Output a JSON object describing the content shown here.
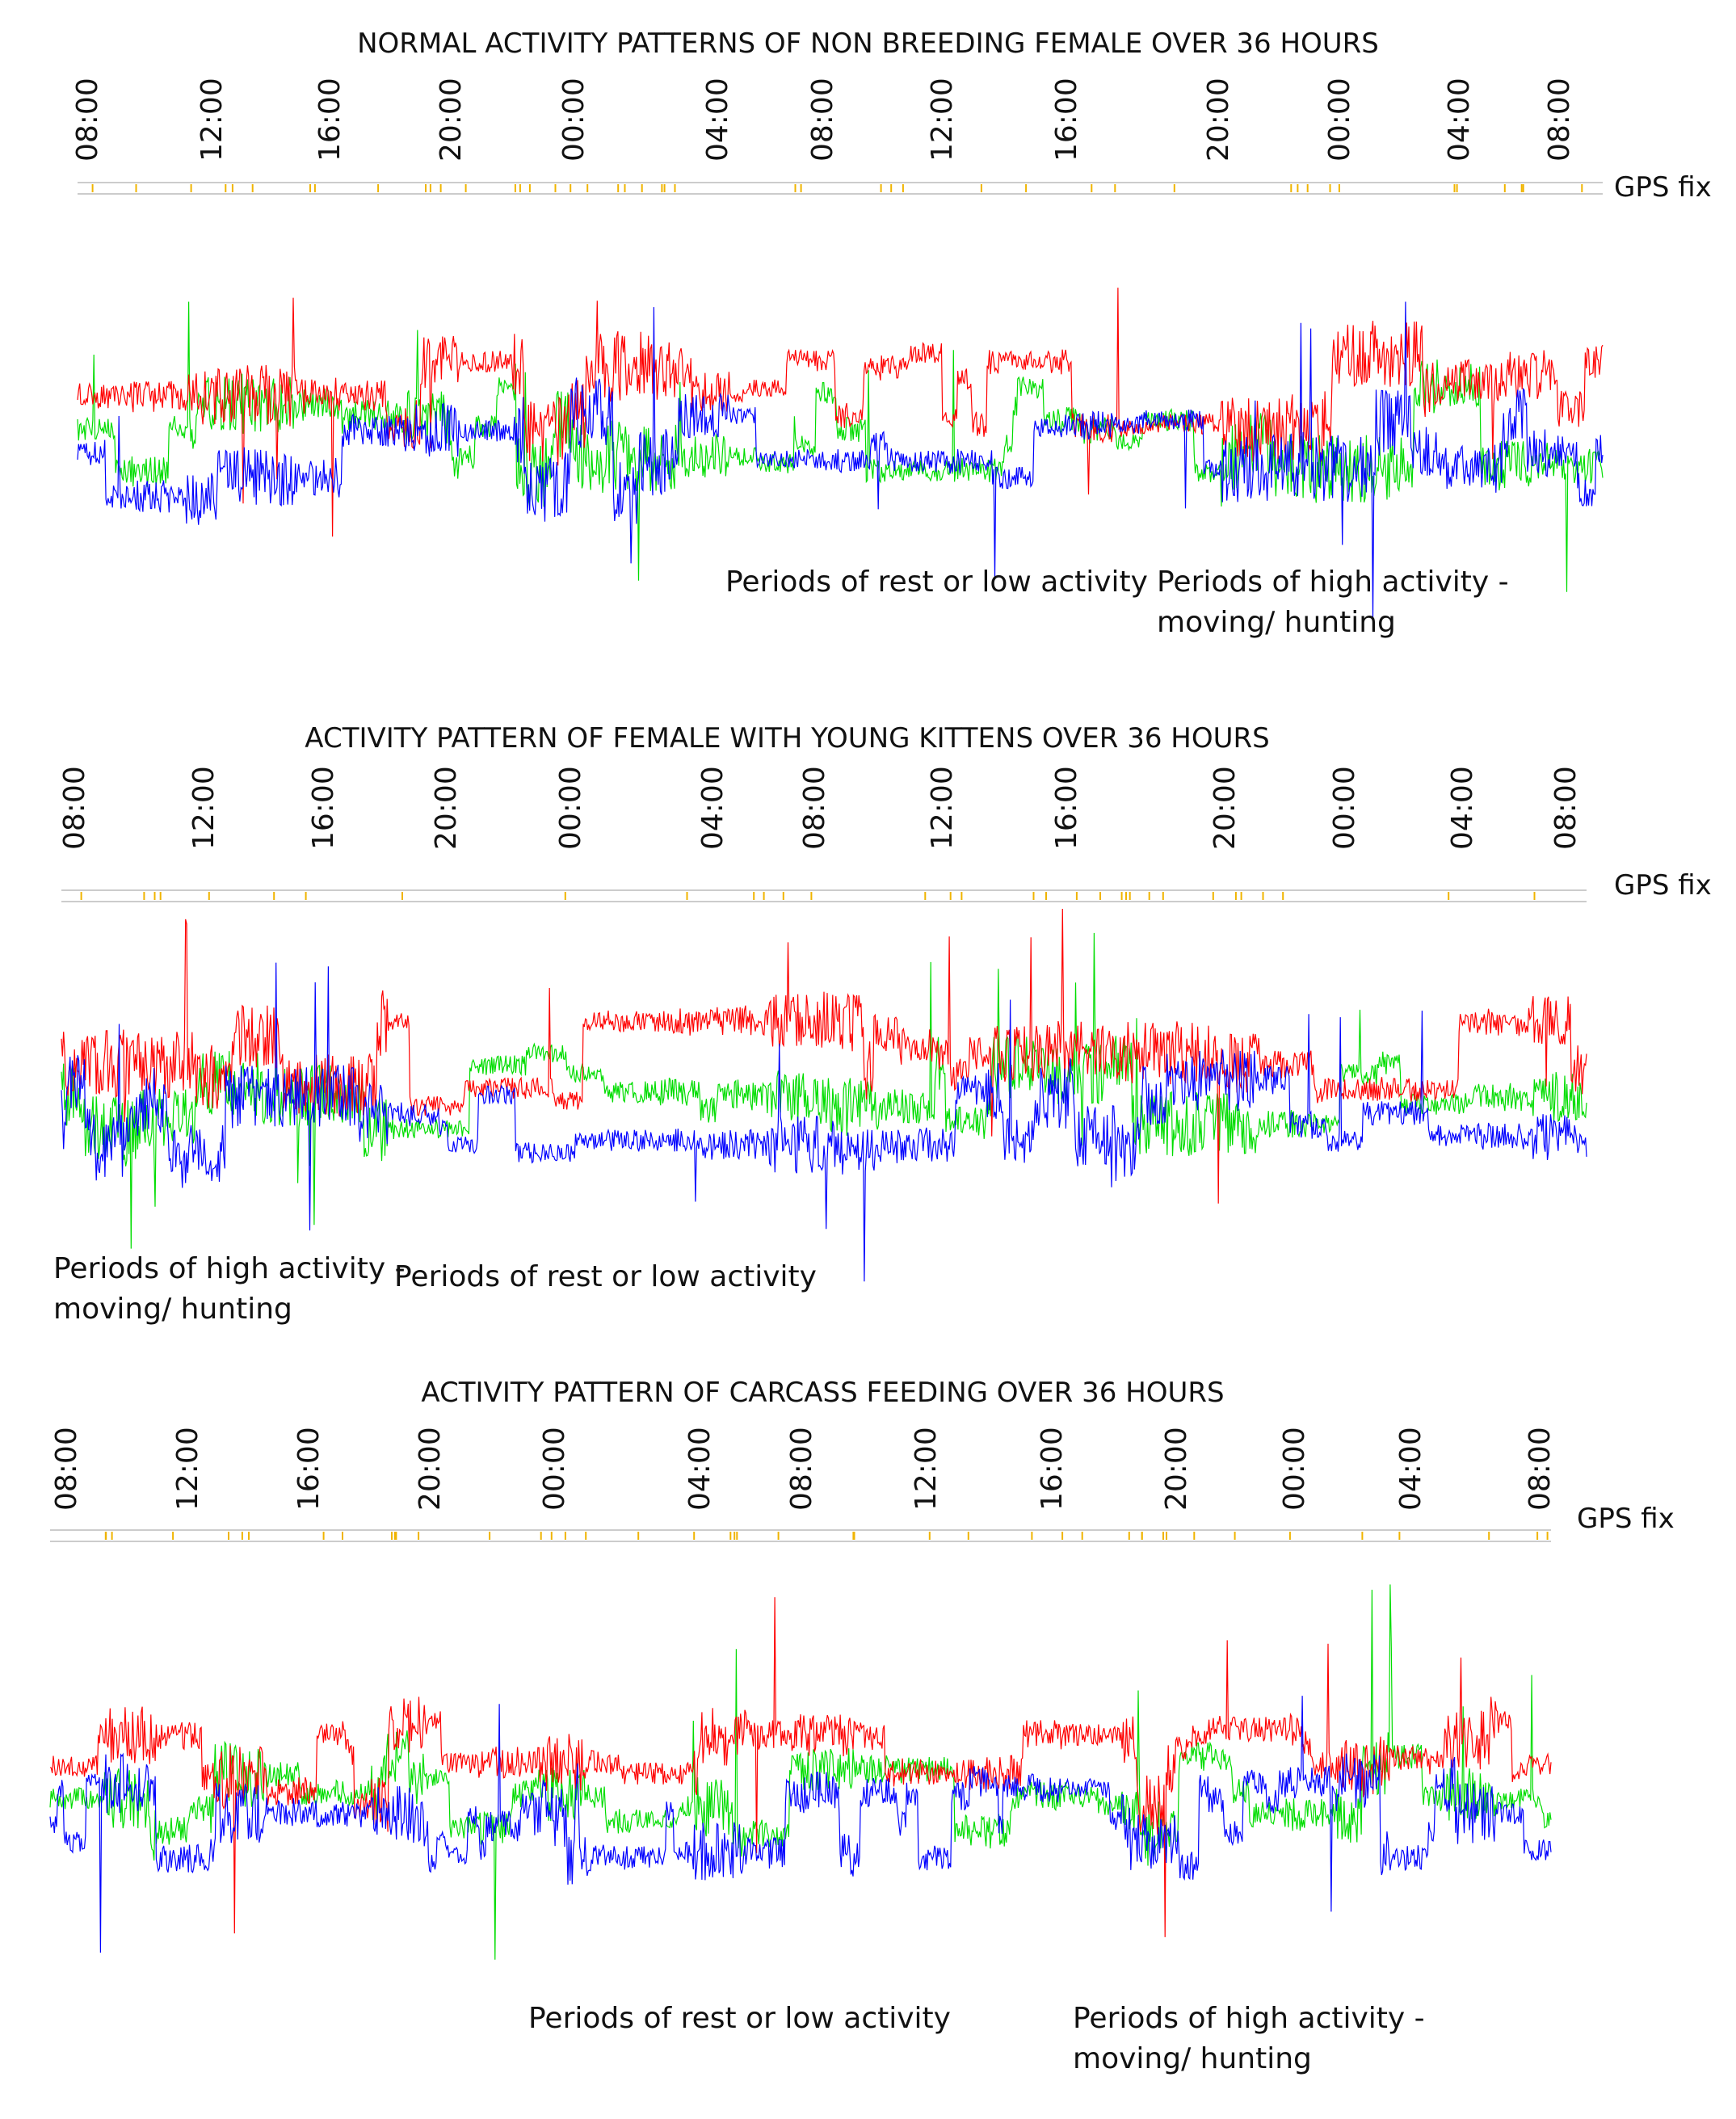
{
  "chart_data": [
    {
      "type": "line",
      "title": "NORMAL ACTIVITY PATTERNS OF NON BREEDING FEMALE OVER 36 HOURS",
      "x_tick_labels": [
        "08:00",
        "12:00",
        "16:00",
        "20:00",
        "00:00",
        "04:00",
        "08:00",
        "12:00",
        "16:00",
        "20:00",
        "00:00",
        "04:00",
        "08:00"
      ],
      "gps_label": "GPS fix",
      "series_colors": [
        "#ff0000",
        "#00dd00",
        "#0000ff"
      ],
      "annotations": [
        "Periods of rest or low activity",
        "Periods of high activity -\nmoving/ hunting"
      ],
      "activity_profile": [
        0.35,
        0.45,
        0.8,
        0.85,
        0.5,
        0.45,
        0.75,
        0.3,
        0.95,
        1.0,
        0.95,
        0.6,
        0.25,
        0.3,
        0.35,
        0.3,
        0.35,
        0.3,
        0.4,
        0.25,
        0.3,
        0.95,
        1.0,
        0.95,
        0.9,
        0.6,
        0.7,
        0.5
      ],
      "seed": 11
    },
    {
      "type": "line",
      "title": "ACTIVITY PATTERN OF FEMALE WITH YOUNG KITTENS OVER 36 HOURS",
      "x_tick_labels": [
        "08:00",
        "12:00",
        "16:00",
        "20:00",
        "00:00",
        "04:00",
        "08:00",
        "12:00",
        "16:00",
        "20:00",
        "00:00",
        "04:00",
        "08:00"
      ],
      "gps_label": "GPS fix",
      "series_colors": [
        "#ff0000",
        "#00dd00",
        "#0000ff"
      ],
      "annotations": [
        "Periods of high activity -\nmoving/ hunting",
        "Periods of rest or low activity"
      ],
      "activity_profile": [
        0.9,
        0.95,
        0.9,
        0.9,
        0.85,
        0.9,
        0.3,
        0.25,
        0.3,
        0.25,
        0.3,
        0.4,
        0.45,
        0.8,
        0.85,
        0.5,
        0.45,
        0.85,
        0.9,
        0.85,
        0.9,
        0.85,
        0.4,
        0.3,
        0.35,
        0.3,
        0.4,
        0.7
      ],
      "seed": 23
    },
    {
      "type": "line",
      "title": "ACTIVITY PATTERN OF CARCASS FEEDING OVER 36 HOURS",
      "x_tick_labels": [
        "08:00",
        "12:00",
        "16:00",
        "20:00",
        "00:00",
        "04:00",
        "08:00",
        "12:00",
        "16:00",
        "20:00",
        "00:00",
        "04:00",
        "08:00"
      ],
      "gps_label": "GPS fix",
      "series_colors": [
        "#ff0000",
        "#00dd00",
        "#0000ff"
      ],
      "annotations": [
        "Periods of rest or low activity",
        "Periods of high activity -\nmoving/ hunting"
      ],
      "activity_profile": [
        0.3,
        0.85,
        0.4,
        0.9,
        0.4,
        0.35,
        0.8,
        0.3,
        0.45,
        0.8,
        0.35,
        0.3,
        0.85,
        0.45,
        0.6,
        0.4,
        0.35,
        0.5,
        0.4,
        0.3,
        0.85,
        0.4,
        0.35,
        0.45,
        0.8,
        0.35,
        0.85,
        0.3
      ],
      "seed": 37
    }
  ]
}
